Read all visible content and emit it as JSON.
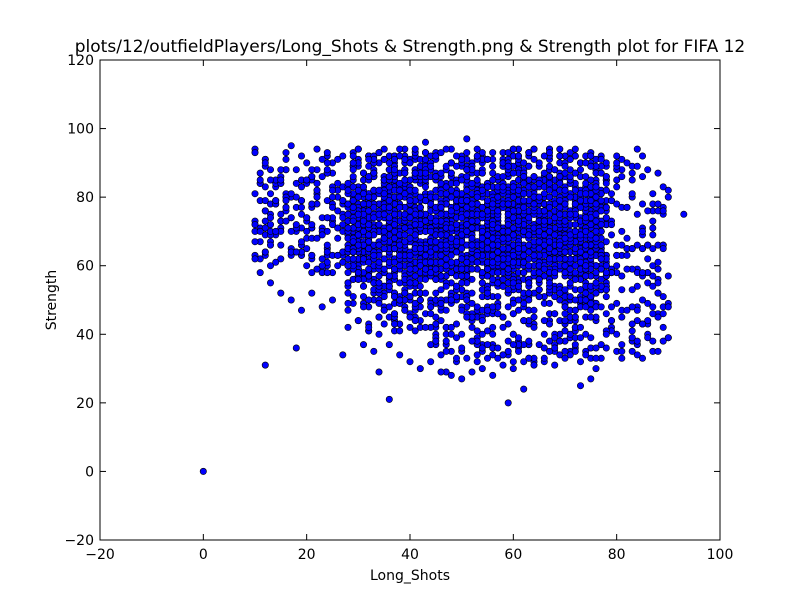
{
  "chart_data": {
    "type": "scatter",
    "title": "plots/12/outfieldPlayers/Long_Shots & Strength.png & Strength plot for FIFA 12",
    "xlabel": "Long_Shots",
    "ylabel": "Strength",
    "xlim": [
      -20,
      100
    ],
    "ylim": [
      -20,
      120
    ],
    "xticks": [
      "−20",
      "0",
      "20",
      "40",
      "60",
      "80",
      "100"
    ],
    "yticks": [
      "−20",
      "0",
      "20",
      "40",
      "60",
      "80",
      "100",
      "120"
    ],
    "grid": false,
    "legend": "none",
    "marker_color": "#0000ff",
    "marker_edge": "#000000",
    "series": [
      {
        "points": [
          [
            0,
            0
          ],
          [
            12,
            31
          ],
          [
            18,
            36
          ],
          [
            27,
            34
          ],
          [
            33,
            35
          ],
          [
            34,
            29
          ],
          [
            36,
            21
          ],
          [
            59,
            20
          ],
          [
            62,
            24
          ],
          [
            73,
            25
          ],
          [
            75,
            27
          ],
          [
            76,
            30
          ],
          [
            93,
            75
          ],
          [
            90,
            80
          ],
          [
            90,
            82
          ],
          [
            88,
            78
          ],
          [
            89,
            76
          ],
          [
            87,
            73
          ],
          [
            85,
            70
          ],
          [
            86,
            66
          ],
          [
            86,
            62
          ],
          [
            85,
            58
          ],
          [
            86,
            55
          ],
          [
            88,
            52
          ],
          [
            87,
            48
          ],
          [
            88,
            45
          ],
          [
            84,
            47
          ],
          [
            81,
            45
          ],
          [
            10,
            94
          ],
          [
            10,
            93
          ],
          [
            12,
            90
          ],
          [
            13,
            88
          ],
          [
            16,
            93
          ],
          [
            17,
            95
          ],
          [
            19,
            92
          ],
          [
            22,
            94
          ],
          [
            24,
            93
          ],
          [
            27,
            92
          ],
          [
            30,
            94
          ],
          [
            35,
            94
          ],
          [
            38,
            94
          ],
          [
            43,
            96
          ],
          [
            46,
            93
          ],
          [
            51,
            97
          ],
          [
            56,
            93
          ],
          [
            60,
            94
          ],
          [
            64,
            94
          ],
          [
            67,
            93
          ],
          [
            72,
            94
          ],
          [
            75,
            92
          ],
          [
            77,
            91
          ],
          [
            80,
            90
          ],
          [
            82,
            90
          ],
          [
            84,
            94
          ],
          [
            85,
            92
          ],
          [
            86,
            88
          ],
          [
            10,
            72
          ],
          [
            10,
            67
          ],
          [
            10,
            62
          ],
          [
            11,
            58
          ],
          [
            13,
            55
          ],
          [
            15,
            52
          ],
          [
            17,
            50
          ],
          [
            19,
            47
          ],
          [
            21,
            52
          ],
          [
            23,
            48
          ],
          [
            25,
            50
          ],
          [
            28,
            47
          ],
          [
            30,
            44
          ],
          [
            32,
            42
          ],
          [
            34,
            40
          ],
          [
            36,
            37
          ],
          [
            38,
            34
          ],
          [
            40,
            32
          ],
          [
            42,
            30
          ],
          [
            44,
            32
          ],
          [
            46,
            29
          ],
          [
            48,
            28
          ],
          [
            50,
            27
          ],
          [
            52,
            29
          ],
          [
            54,
            30
          ],
          [
            56,
            28
          ],
          [
            58,
            31
          ],
          [
            60,
            30
          ],
          [
            62,
            32
          ],
          [
            64,
            31
          ],
          [
            66,
            33
          ],
          [
            68,
            31
          ],
          [
            70,
            33
          ],
          [
            72,
            35
          ],
          [
            74,
            34
          ],
          [
            76,
            33
          ],
          [
            78,
            40
          ],
          [
            79,
            44
          ],
          [
            14,
            70
          ],
          [
            18,
            64
          ],
          [
            22,
            68
          ],
          [
            26,
            60
          ],
          [
            30,
            58
          ],
          [
            34,
            55
          ],
          [
            38,
            50
          ],
          [
            40,
            45
          ],
          [
            43,
            42
          ],
          [
            45,
            38
          ],
          [
            47,
            35
          ],
          [
            49,
            33
          ],
          [
            53,
            34
          ],
          [
            55,
            33
          ],
          [
            57,
            36
          ],
          [
            61,
            35
          ],
          [
            63,
            38
          ],
          [
            65,
            37
          ],
          [
            67,
            35
          ],
          [
            69,
            38
          ],
          [
            71,
            40
          ],
          [
            73,
            42
          ],
          [
            75,
            45
          ],
          [
            77,
            48
          ],
          [
            20,
            60
          ],
          [
            24,
            58
          ],
          [
            28,
            55
          ],
          [
            32,
            50
          ],
          [
            36,
            48
          ],
          [
            42,
            50
          ],
          [
            44,
            46
          ],
          [
            46,
            44
          ],
          [
            48,
            42
          ],
          [
            50,
            40
          ],
          [
            52,
            42
          ],
          [
            54,
            44
          ],
          [
            56,
            40
          ],
          [
            58,
            42
          ],
          [
            60,
            40
          ],
          [
            62,
            44
          ],
          [
            64,
            42
          ],
          [
            66,
            44
          ],
          [
            68,
            46
          ],
          [
            70,
            48
          ],
          [
            72,
            50
          ],
          [
            74,
            52
          ],
          [
            76,
            55
          ],
          [
            78,
            58
          ],
          [
            80,
            60
          ],
          [
            82,
            63
          ],
          [
            84,
            66
          ]
        ],
        "cloud": {
          "x_range": [
            10,
            90
          ],
          "y_range": [
            30,
            95
          ],
          "core": {
            "x": [
              28,
              78
            ],
            "y": [
              50,
              88
            ]
          },
          "count": 3200
        }
      }
    ]
  }
}
